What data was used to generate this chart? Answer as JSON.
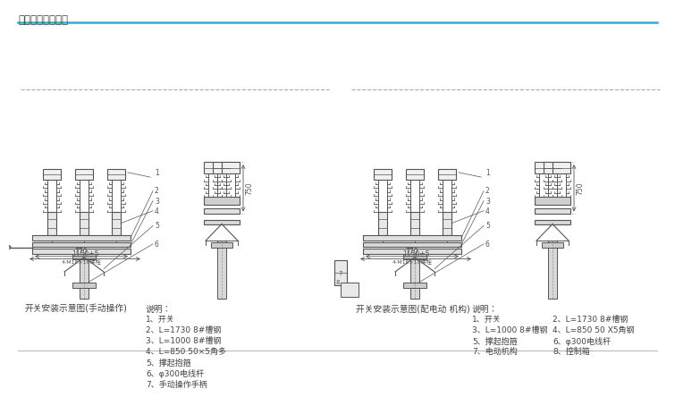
{
  "title": "外形及安装尺寸图",
  "title_color": "#444444",
  "title_line_color": "#2ab0c8",
  "bg_color": "#ffffff",
  "left_diagram_label": "开关安装示意图(手动操作)",
  "right_diagram_label": "开关安装示意图(配电动 机构)",
  "notes_label": "说明：",
  "left_notes": [
    "1、开关",
    "2、L=1730 8#槽钢",
    "3、L=1000 8#槽钢",
    "4、L=850 50×5角多",
    "5、撑起抱箍",
    "6、φ300电线杆",
    "7、手动操作手柄"
  ],
  "right_notes_col1": [
    "1、开关",
    "3、L=1000 8#槽钢",
    "5、撑起抱箍",
    "7、电动机构"
  ],
  "right_notes_col2": [
    "2、L=1730 8#槽钢",
    "4、L=850 50 X5角钢",
    "6、φ300电线杆",
    "8、控制箱"
  ],
  "dim_770": "770",
  "dim_1150": "1150±5",
  "dim_750": "750",
  "lc": "#555555",
  "dc": "#555555",
  "tc": "#444444",
  "dashed_color": "#aaaaaa"
}
